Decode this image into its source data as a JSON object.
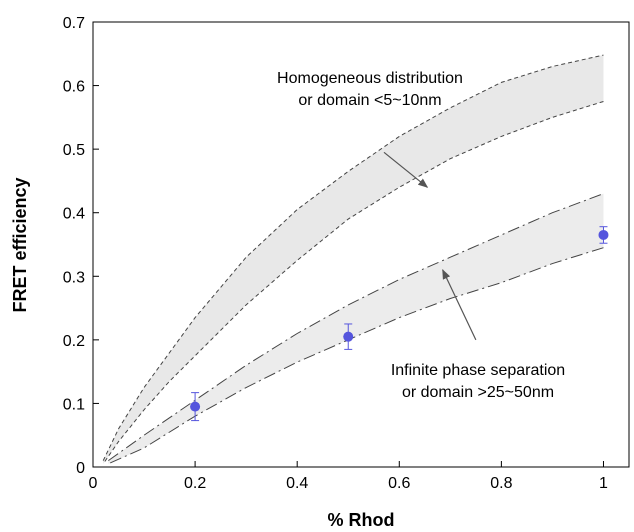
{
  "chart_data": {
    "type": "area",
    "xlabel": "% Rhod",
    "ylabel": "FRET efficiency",
    "xlim": [
      0,
      1.05
    ],
    "ylim": [
      0,
      0.7
    ],
    "xticks": [
      0,
      0.2,
      0.4,
      0.6,
      0.8,
      1
    ],
    "yticks": [
      0,
      0.1,
      0.2,
      0.3,
      0.4,
      0.5,
      0.6,
      0.7
    ],
    "grid": false,
    "series": [
      {
        "kind": "band",
        "line_style": "short-dash",
        "fill": "#e8e8e8",
        "x": [
          0.02,
          0.05,
          0.1,
          0.15,
          0.2,
          0.3,
          0.4,
          0.5,
          0.6,
          0.7,
          0.8,
          0.9,
          1.0
        ],
        "upper": [
          0.01,
          0.06,
          0.125,
          0.18,
          0.235,
          0.33,
          0.405,
          0.465,
          0.52,
          0.565,
          0.605,
          0.63,
          0.648
        ],
        "lower": [
          0.005,
          0.04,
          0.09,
          0.135,
          0.175,
          0.255,
          0.325,
          0.39,
          0.44,
          0.485,
          0.52,
          0.55,
          0.575
        ]
      },
      {
        "kind": "band",
        "line_style": "long-dash",
        "fill": "#ececec",
        "x": [
          0.03,
          0.1,
          0.2,
          0.3,
          0.4,
          0.5,
          0.6,
          0.7,
          0.8,
          0.9,
          1.0
        ],
        "upper": [
          0.01,
          0.05,
          0.105,
          0.16,
          0.21,
          0.255,
          0.295,
          0.33,
          0.365,
          0.4,
          0.43
        ],
        "lower": [
          0.005,
          0.03,
          0.08,
          0.125,
          0.165,
          0.2,
          0.235,
          0.265,
          0.29,
          0.32,
          0.345
        ]
      },
      {
        "kind": "scatter",
        "color": "#5555dd",
        "x": [
          0.2,
          0.5,
          1.0
        ],
        "y": [
          0.095,
          0.205,
          0.365
        ],
        "err": [
          0.022,
          0.02,
          0.013
        ]
      }
    ],
    "annotations": [
      {
        "lines": [
          "Homogeneous distribution",
          "or domain <5~10nm"
        ],
        "arrow_from": [
          0.57,
          0.495
        ],
        "arrow_to": [
          0.655,
          0.44
        ]
      },
      {
        "lines": [
          "Infinite phase separation",
          "or domain >25~50nm"
        ],
        "arrow_from": [
          0.75,
          0.2
        ],
        "arrow_to": [
          0.685,
          0.31
        ]
      }
    ]
  }
}
